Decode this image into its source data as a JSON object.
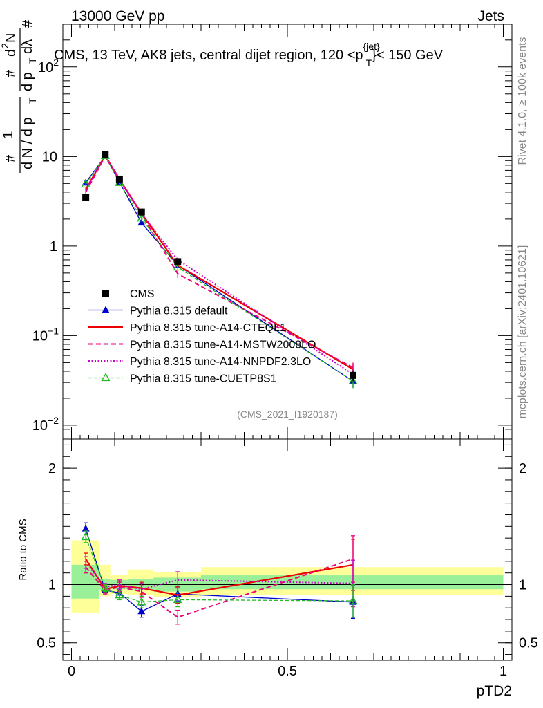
{
  "header": {
    "left": "13000 GeV pp",
    "right": "Jets",
    "side_top": "Rivet 4.1.0, ≥ 100k events",
    "side_bottom": "mcplots.cern.ch [arXiv:2401.10621]",
    "analysis_id": "(CMS_2021_I1920187)"
  },
  "colors": {
    "cms": "#000000",
    "default": "#0000cc",
    "cteql1": "#ee0000",
    "mstw": "#ee0077",
    "nnpdf": "#cc00cc",
    "cuetp8s1": "#22bb22",
    "band_inner": "#99f099",
    "band_outer": "#ffff99"
  },
  "chart_data": [
    {
      "type": "line",
      "title": "CMS, 13 TeV, AK8 jets, central dijet region, 120 <p",
      "title_sup": "{jet}",
      "title_sub": "T",
      "title_end": "}< 150 GeV",
      "ylabel_parts": [
        "1",
        "d N / d p",
        "T",
        "#",
        "d",
        "2",
        "N",
        "d p",
        "T",
        "#",
        "dλ",
        "#"
      ],
      "yscale": "log",
      "xlim": [
        0,
        1
      ],
      "ylim": [
        0.007,
        300
      ],
      "y_ticks": [
        {
          "value": 0.01,
          "label": "10",
          "sup": "−2"
        },
        {
          "value": 0.1,
          "label": "10",
          "sup": "−1"
        },
        {
          "value": 1,
          "label": "1",
          "sup": ""
        },
        {
          "value": 10,
          "label": "10",
          "sup": ""
        },
        {
          "value": 100,
          "label": "10",
          "sup": "2"
        }
      ],
      "x": [
        0.033,
        0.078,
        0.111,
        0.162,
        0.246,
        0.652
      ],
      "series": [
        {
          "name": "CMS",
          "key": "cms",
          "values": [
            3.5,
            10.5,
            5.6,
            2.4,
            0.67,
            0.036
          ],
          "err": [
            0.3,
            0.6,
            0.3,
            0.15,
            0.05,
            0.005
          ]
        },
        {
          "name": "Pythia 8.315 default",
          "key": "default",
          "values": [
            5.1,
            10.1,
            5.2,
            1.82,
            0.61,
            0.031
          ],
          "err": [
            0.2,
            0.3,
            0.2,
            0.09,
            0.04,
            0.005
          ]
        },
        {
          "name": "Pythia 8.315 tune-A14-CTEQL1",
          "key": "cteql1",
          "values": [
            4.3,
            10.2,
            5.55,
            2.32,
            0.61,
            0.042
          ],
          "err": [
            0.2,
            0.3,
            0.2,
            0.1,
            0.05,
            0.006
          ]
        },
        {
          "name": "Pythia 8.315 tune-A14-MSTW2008LO",
          "key": "mstw",
          "values": [
            4.0,
            10.0,
            5.5,
            2.25,
            0.49,
            0.044
          ],
          "err": [
            0.2,
            0.3,
            0.2,
            0.1,
            0.05,
            0.006
          ]
        },
        {
          "name": "Pythia 8.315 tune-A14-NNPDF2.3LO",
          "key": "nnpdf",
          "values": [
            4.2,
            10.3,
            5.65,
            2.3,
            0.7,
            0.037
          ],
          "err": [
            0.2,
            0.3,
            0.2,
            0.1,
            0.05,
            0.005
          ]
        },
        {
          "name": "Pythia 8.315 tune-CUETP8S1",
          "key": "cuetp8s1",
          "values": [
            4.9,
            10.2,
            5.1,
            2.04,
            0.58,
            0.031
          ],
          "err": [
            0.2,
            0.3,
            0.2,
            0.1,
            0.04,
            0.005
          ]
        }
      ]
    },
    {
      "type": "line",
      "ylabel": "Ratio to CMS",
      "xlabel": "pTD2",
      "xlim": [
        -0.02,
        1.02
      ],
      "ylim": [
        0.35,
        2.25
      ],
      "x_ticks": [
        {
          "value": 0,
          "label": "0"
        },
        {
          "value": 0.5,
          "label": "0.5"
        },
        {
          "value": 1,
          "label": "1"
        }
      ],
      "y_ticks": [
        {
          "value": 0.5,
          "label": "0.5"
        },
        {
          "value": 1,
          "label": "1"
        },
        {
          "value": 2,
          "label": "2"
        }
      ],
      "bands": [
        {
          "x0": 0.0,
          "x1": 0.065,
          "inner": [
            0.88,
            1.17
          ],
          "outer": [
            0.76,
            1.38
          ]
        },
        {
          "x0": 0.065,
          "x1": 0.09,
          "inner": [
            0.95,
            1.05
          ],
          "outer": [
            0.9,
            1.17
          ]
        },
        {
          "x0": 0.09,
          "x1": 0.13,
          "inner": [
            0.96,
            1.04
          ],
          "outer": [
            0.92,
            1.08
          ]
        },
        {
          "x0": 0.13,
          "x1": 0.19,
          "inner": [
            0.95,
            1.05
          ],
          "outer": [
            0.91,
            1.13
          ]
        },
        {
          "x0": 0.19,
          "x1": 0.3,
          "inner": [
            0.94,
            1.06
          ],
          "outer": [
            0.89,
            1.11
          ]
        },
        {
          "x0": 0.3,
          "x1": 1.0,
          "inner": [
            0.96,
            1.08
          ],
          "outer": [
            0.91,
            1.15
          ]
        }
      ],
      "x": [
        0.033,
        0.078,
        0.111,
        0.162,
        0.246,
        0.652
      ],
      "series": [
        {
          "name": "Pythia 8.315 default",
          "key": "default",
          "values": [
            1.48,
            0.95,
            0.93,
            0.77,
            0.92,
            0.85
          ],
          "err": [
            0.05,
            0.03,
            0.04,
            0.05,
            0.06,
            0.14
          ]
        },
        {
          "name": "Pythia 8.315 tune-A14-CTEQL1",
          "key": "cteql1",
          "values": [
            1.22,
            0.96,
            0.99,
            0.97,
            0.91,
            1.17
          ],
          "err": [
            0.05,
            0.03,
            0.04,
            0.05,
            0.07,
            0.22
          ]
        },
        {
          "name": "Pythia 8.315 tune-A14-MSTW2008LO",
          "key": "mstw",
          "values": [
            1.15,
            0.95,
            0.98,
            0.94,
            0.72,
            1.22
          ],
          "err": [
            0.05,
            0.03,
            0.04,
            0.05,
            0.06,
            0.2
          ]
        },
        {
          "name": "Pythia 8.315 tune-A14-NNPDF2.3LO",
          "key": "nnpdf",
          "values": [
            1.19,
            0.98,
            1.0,
            0.96,
            1.04,
            1.01
          ],
          "err": [
            0.05,
            0.03,
            0.04,
            0.05,
            0.07,
            0.2
          ]
        },
        {
          "name": "Pythia 8.315 tune-CUETP8S1",
          "key": "cuetp8s1",
          "values": [
            1.41,
            0.97,
            0.91,
            0.85,
            0.87,
            0.86
          ],
          "err": [
            0.05,
            0.03,
            0.04,
            0.05,
            0.06,
            0.14
          ]
        }
      ]
    }
  ]
}
